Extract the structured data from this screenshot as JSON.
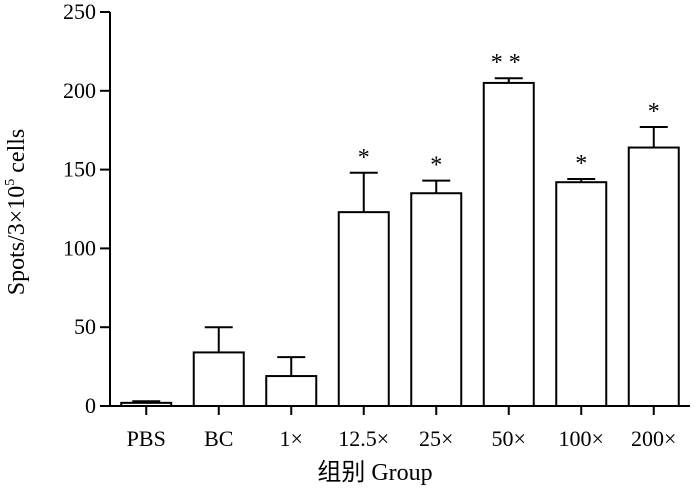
{
  "chart_data": {
    "type": "bar",
    "categories": [
      "PBS",
      "BC",
      "1×",
      "12.5×",
      "25×",
      "50×",
      "100×",
      "200×"
    ],
    "values": [
      2,
      34,
      19,
      123,
      135,
      205,
      142,
      164
    ],
    "errors": [
      1,
      16,
      12,
      25,
      8,
      3,
      2,
      13
    ],
    "significance": [
      "",
      "",
      "",
      "*",
      "*",
      "**",
      "*",
      "*"
    ],
    "ylim": [
      0,
      250
    ],
    "yticks": [
      0,
      50,
      100,
      150,
      200,
      250
    ],
    "xlabel": "组别 Group",
    "ylabel_prefix": "Spots/3×10",
    "ylabel_sup": "5",
    "ylabel_suffix": " cells"
  }
}
